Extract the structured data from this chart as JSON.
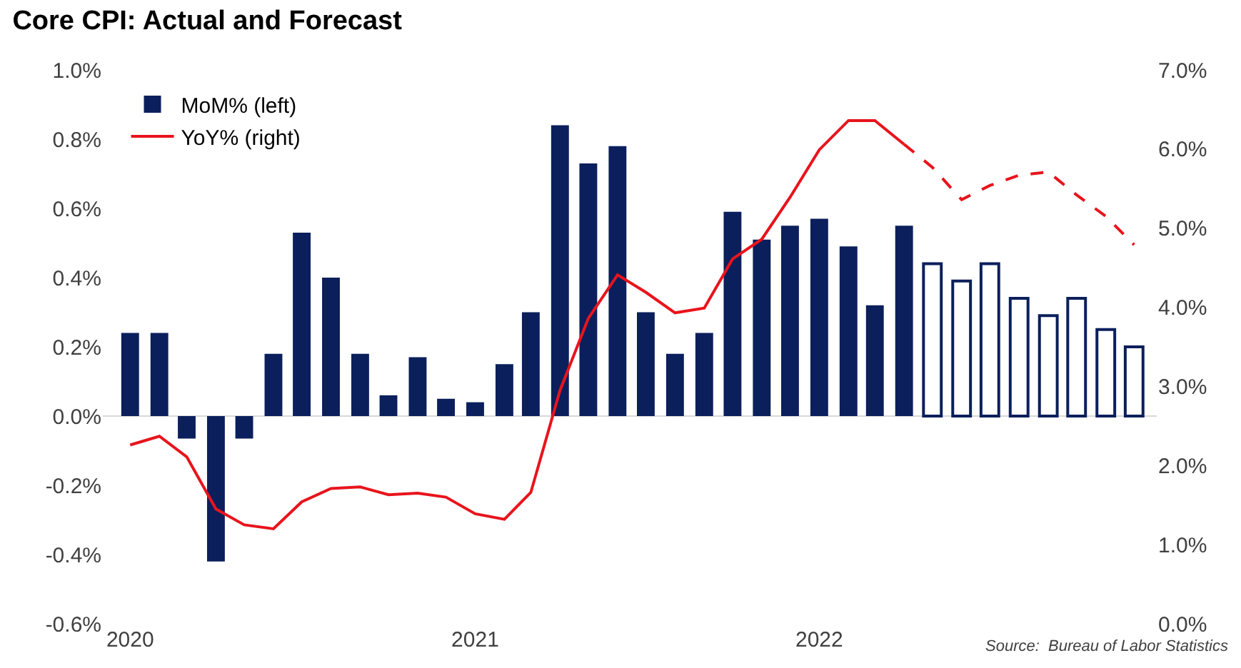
{
  "chart_data": {
    "type": "bar",
    "title": "Core CPI: Actual and Forecast",
    "x": [
      "2020-01",
      "2020-02",
      "2020-03",
      "2020-04",
      "2020-05",
      "2020-06",
      "2020-07",
      "2020-08",
      "2020-09",
      "2020-10",
      "2020-11",
      "2020-12",
      "2021-01",
      "2021-02",
      "2021-03",
      "2021-04",
      "2021-05",
      "2021-06",
      "2021-07",
      "2021-08",
      "2021-09",
      "2021-10",
      "2021-11",
      "2021-12",
      "2022-01",
      "2022-02",
      "2022-03",
      "2022-04",
      "2022-05",
      "2022-06",
      "2022-07",
      "2022-08",
      "2022-09",
      "2022-10",
      "2022-11",
      "2022-12"
    ],
    "series": [
      {
        "name": "MoM% (left)",
        "color": "#0b1f5c",
        "values": [
          0.24,
          0.24,
          -0.065,
          -0.42,
          -0.065,
          0.18,
          0.53,
          0.4,
          0.18,
          0.06,
          0.17,
          0.05,
          0.04,
          0.15,
          0.3,
          0.84,
          0.73,
          0.78,
          0.3,
          0.18,
          0.24,
          0.59,
          0.51,
          0.55,
          0.57,
          0.49,
          0.32,
          0.55,
          null,
          null,
          null,
          null,
          null,
          null,
          null,
          null
        ]
      },
      {
        "color": "#ffffff",
        "values": [
          null,
          null,
          null,
          null,
          null,
          null,
          null,
          null,
          null,
          null,
          null,
          null,
          null,
          null,
          null,
          null,
          null,
          null,
          null,
          null,
          null,
          null,
          null,
          null,
          null,
          null,
          null,
          null,
          0.44,
          0.39,
          0.44,
          0.34,
          0.29,
          0.34,
          0.25,
          0.2
        ]
      },
      {
        "name": "YoY% (right)",
        "type": "line",
        "axis": "y2",
        "color": "#e8141c",
        "line_style": "solid",
        "values": [
          2.26,
          2.37,
          2.11,
          1.45,
          1.25,
          1.2,
          1.54,
          1.71,
          1.73,
          1.63,
          1.65,
          1.6,
          1.39,
          1.32,
          1.66,
          2.95,
          3.86,
          4.41,
          4.19,
          3.93,
          3.99,
          4.61,
          4.86,
          5.39,
          5.99,
          6.36,
          6.36,
          6.06,
          null,
          null,
          null,
          null,
          null,
          null,
          null,
          null
        ]
      },
      {
        "type": "line",
        "axis": "y2",
        "color": "#e8141c",
        "line_style": "dashed",
        "values": [
          null,
          null,
          null,
          null,
          null,
          null,
          null,
          null,
          null,
          null,
          null,
          null,
          null,
          null,
          null,
          null,
          null,
          null,
          null,
          null,
          null,
          null,
          null,
          null,
          null,
          null,
          null,
          6.06,
          5.77,
          5.36,
          5.54,
          5.67,
          5.71,
          5.42,
          5.15,
          4.79
        ]
      }
    ],
    "xlim": [
      "2019-12-03",
      "2022-12-25"
    ],
    "xticks": [
      {
        "value": "2020-01-01",
        "label": "2020"
      },
      {
        "value": "2021-01-01",
        "label": "2021"
      },
      {
        "value": "2022-01-01",
        "label": "2022"
      }
    ],
    "ylim": [
      -0.6,
      1.0
    ],
    "yticks": [
      {
        "value": -0.6,
        "label": "-0.6%"
      },
      {
        "value": -0.4,
        "label": "-0.4%"
      },
      {
        "value": -0.2,
        "label": "-0.2%"
      },
      {
        "value": 0,
        "label": "0.0%"
      },
      {
        "value": 0.2,
        "label": "0.2%"
      },
      {
        "value": 0.4,
        "label": "0.4%"
      },
      {
        "value": 0.6,
        "label": "0.6%"
      },
      {
        "value": 0.8,
        "label": "0.8%"
      },
      {
        "value": 1.0,
        "label": "1.0%"
      }
    ],
    "y2lim": [
      0,
      7
    ],
    "y2ticks": [
      {
        "value": 0,
        "label": "0.0%"
      },
      {
        "value": 1,
        "label": "1.0%"
      },
      {
        "value": 2,
        "label": "2.0%"
      },
      {
        "value": 3,
        "label": "3.0%"
      },
      {
        "value": 4,
        "label": "4.0%"
      },
      {
        "value": 5,
        "label": "5.0%"
      },
      {
        "value": 6,
        "label": "6.0%"
      },
      {
        "value": 7,
        "label": "7.0%"
      }
    ],
    "ref_lines": [
      {
        "axis": "y",
        "value": 0,
        "color": "#d9d9d9"
      }
    ],
    "legend": "top left",
    "annotations": [
      "Source:  Bureau of Labor Statistics"
    ]
  }
}
